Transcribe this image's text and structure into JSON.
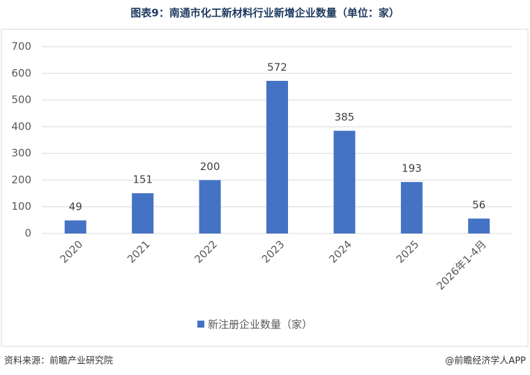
{
  "chart_data": {
    "type": "bar",
    "title": "图表9：南通市化工新材料行业新增企业数量（单位：家）",
    "categories": [
      "2020",
      "2021",
      "2022",
      "2023",
      "2024",
      "2025",
      "2026年1-4月"
    ],
    "series": [
      {
        "name": "新注册企业数量（家）",
        "color": "#4472c4",
        "values": [
          49,
          151,
          200,
          572,
          385,
          193,
          56
        ]
      }
    ],
    "ylim": [
      0,
      700
    ],
    "yticks": [
      0,
      100,
      200,
      300,
      400,
      500,
      600,
      700
    ],
    "grid": true,
    "legend": "bottom"
  },
  "footer": {
    "source": "资料来源：前瞻产业研究院",
    "brand": "@前瞻经济学人APP"
  }
}
